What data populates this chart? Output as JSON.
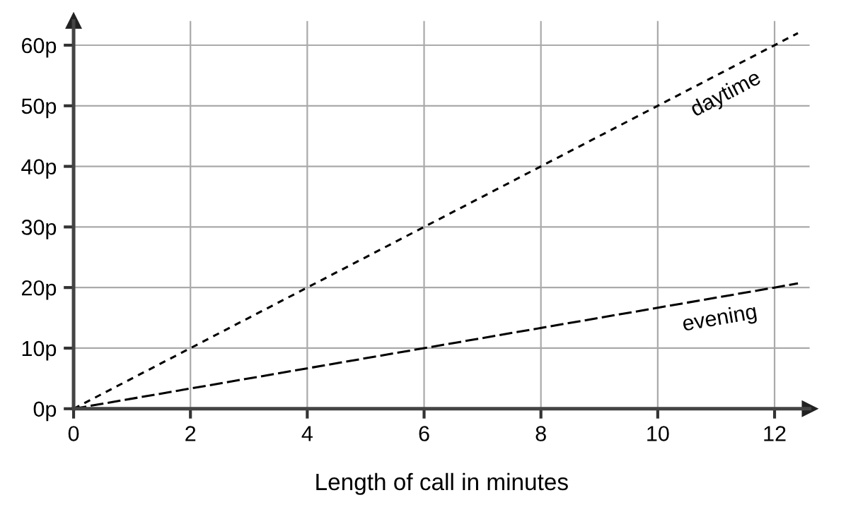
{
  "chart_data": {
    "type": "line",
    "xlabel": "Length of call in minutes",
    "series": [
      {
        "color": "#000000",
        "line_style": "dotted",
        "x": [
          0,
          4,
          8,
          12.4
        ],
        "values": [
          0,
          20,
          40,
          62
        ]
      },
      {
        "color": "#000000",
        "line_style": "dashed",
        "x": [
          0,
          6,
          12,
          12.4
        ],
        "values": [
          0,
          10,
          20,
          20.7
        ]
      }
    ],
    "annotations": [
      {
        "text": "daytime",
        "x": 11,
        "y": 55
      },
      {
        "text": "evening",
        "x": 11,
        "y": 18.3
      }
    ],
    "xlim": [
      0,
      12.6
    ],
    "ylim": [
      0,
      64
    ],
    "xticks": [
      0,
      2,
      4,
      6,
      8,
      10,
      12
    ],
    "yticks": [
      {
        "value": 0,
        "label": "0p"
      },
      {
        "value": 10,
        "label": "10p"
      },
      {
        "value": 20,
        "label": "20p"
      },
      {
        "value": 30,
        "label": "30p"
      },
      {
        "value": 40,
        "label": "40p"
      },
      {
        "value": 50,
        "label": "50p"
      },
      {
        "value": 60,
        "label": "60p"
      }
    ],
    "grid": true,
    "legend": false,
    "marker": "none"
  }
}
